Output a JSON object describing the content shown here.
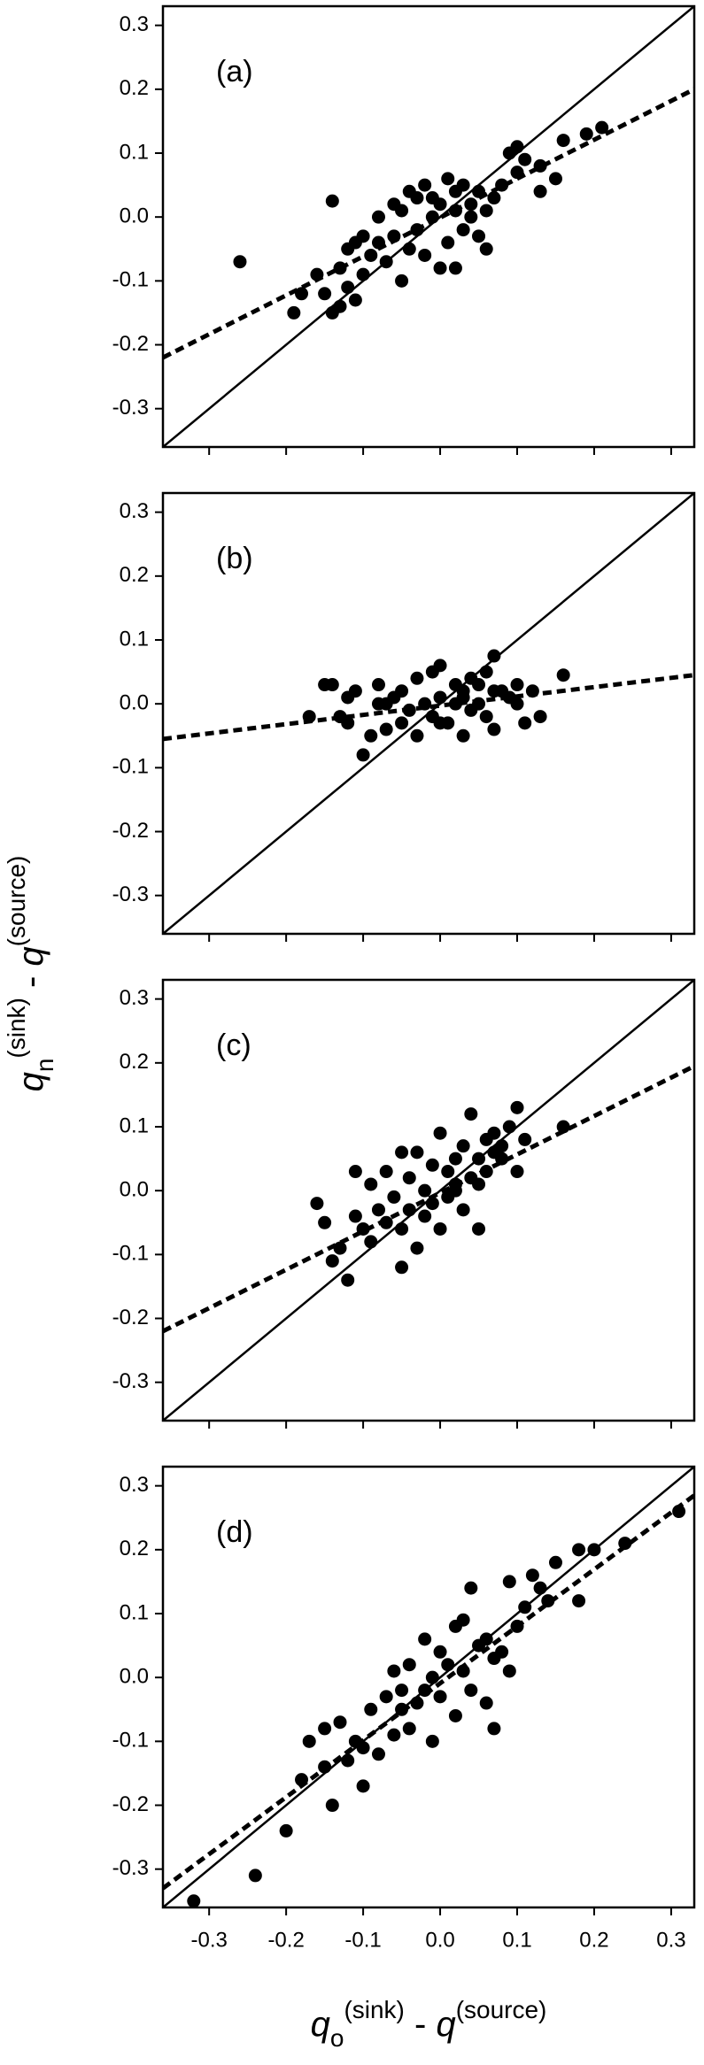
{
  "chart_data": [
    {
      "type": "scatter",
      "label": "(a)",
      "xlim": [
        -0.36,
        0.33
      ],
      "ylim": [
        -0.36,
        0.33
      ],
      "xticks": [
        -0.3,
        -0.2,
        -0.1,
        {
          "value": 0,
          "label": "0.0"
        },
        0.1,
        0.2,
        0.3
      ],
      "yticks": [
        -0.3,
        -0.2,
        -0.1,
        {
          "value": 0,
          "label": "0.0"
        },
        0.1,
        0.2,
        0.3
      ],
      "show_xtick_labels": false,
      "series": [
        {
          "style": "marker",
          "color": "#000000",
          "x": [
            -0.26,
            -0.19,
            -0.18,
            -0.16,
            -0.15,
            -0.14,
            -0.14,
            -0.13,
            -0.12,
            -0.12,
            -0.11,
            -0.11,
            -0.1,
            -0.1,
            -0.09,
            -0.08,
            -0.08,
            -0.07,
            -0.06,
            -0.06,
            -0.05,
            -0.05,
            -0.04,
            -0.04,
            -0.03,
            -0.03,
            -0.02,
            -0.02,
            -0.01,
            -0.01,
            0.0,
            0.0,
            0.01,
            0.01,
            0.02,
            0.02,
            0.03,
            0.03,
            0.04,
            0.04,
            0.05,
            0.05,
            0.06,
            0.07,
            0.08,
            0.09,
            0.1,
            0.1,
            0.11,
            0.13,
            0.13,
            0.15,
            0.16,
            0.19,
            0.21,
            -0.13,
            0.02,
            0.06
          ],
          "values": [
            -0.07,
            -0.15,
            -0.12,
            -0.09,
            -0.12,
            -0.15,
            0.025,
            -0.08,
            -0.05,
            -0.11,
            -0.04,
            -0.13,
            -0.09,
            -0.03,
            -0.06,
            -0.04,
            0.0,
            -0.07,
            -0.03,
            0.02,
            -0.1,
            0.01,
            -0.05,
            0.04,
            -0.02,
            0.03,
            -0.06,
            0.05,
            0.0,
            0.03,
            -0.08,
            0.02,
            -0.04,
            0.06,
            0.01,
            0.04,
            -0.02,
            0.05,
            0.0,
            0.02,
            -0.03,
            0.04,
            0.01,
            0.03,
            0.05,
            0.1,
            0.07,
            0.11,
            0.09,
            0.04,
            0.08,
            0.06,
            0.12,
            0.13,
            0.14,
            -0.14,
            -0.08,
            -0.05
          ]
        },
        {
          "style": "solid",
          "color": "#000000",
          "x": [
            -0.36,
            0.33
          ],
          "values": [
            -0.36,
            0.33
          ]
        },
        {
          "style": "dashed",
          "color": "#000000",
          "x": [
            -0.36,
            0.33
          ],
          "values": [
            -0.22,
            0.2
          ]
        }
      ]
    },
    {
      "type": "scatter",
      "label": "(b)",
      "xlim": [
        -0.36,
        0.33
      ],
      "ylim": [
        -0.36,
        0.33
      ],
      "xticks": [
        -0.3,
        -0.2,
        -0.1,
        {
          "value": 0,
          "label": "0.0"
        },
        0.1,
        0.2,
        0.3
      ],
      "yticks": [
        -0.3,
        -0.2,
        -0.1,
        {
          "value": 0,
          "label": "0.0"
        },
        0.1,
        0.2,
        0.3
      ],
      "show_xtick_labels": false,
      "series": [
        {
          "style": "marker",
          "color": "#000000",
          "x": [
            -0.17,
            -0.15,
            -0.14,
            -0.13,
            -0.12,
            -0.12,
            -0.11,
            -0.1,
            -0.09,
            -0.08,
            -0.08,
            -0.07,
            -0.06,
            -0.05,
            -0.05,
            -0.04,
            -0.03,
            -0.03,
            -0.02,
            -0.01,
            -0.01,
            0.0,
            0.0,
            0.01,
            0.02,
            0.02,
            0.03,
            0.03,
            0.04,
            0.04,
            0.05,
            0.05,
            0.06,
            0.06,
            0.07,
            0.07,
            0.08,
            0.09,
            0.1,
            0.11,
            0.12,
            0.13,
            0.16,
            0.03,
            -0.07,
            0.0,
            0.07,
            0.1
          ],
          "values": [
            -0.02,
            0.03,
            0.03,
            -0.02,
            0.01,
            -0.03,
            0.02,
            -0.08,
            -0.05,
            0.0,
            0.03,
            -0.04,
            0.01,
            -0.03,
            0.02,
            -0.01,
            0.04,
            -0.05,
            0.0,
            0.05,
            -0.02,
            0.06,
            0.01,
            -0.03,
            0.03,
            0.0,
            -0.05,
            0.02,
            0.04,
            -0.01,
            0.03,
            0.0,
            -0.02,
            0.05,
            0.075,
            -0.04,
            0.02,
            0.01,
            0.0,
            -0.03,
            0.02,
            -0.02,
            0.045,
            0.01,
            0.0,
            -0.03,
            0.02,
            0.03
          ]
        },
        {
          "style": "solid",
          "color": "#000000",
          "x": [
            -0.36,
            0.33
          ],
          "values": [
            -0.36,
            0.33
          ]
        },
        {
          "style": "dashed",
          "color": "#000000",
          "x": [
            -0.36,
            0.33
          ],
          "values": [
            -0.055,
            0.045
          ]
        }
      ]
    },
    {
      "type": "scatter",
      "label": "(c)",
      "xlim": [
        -0.36,
        0.33
      ],
      "ylim": [
        -0.36,
        0.33
      ],
      "xticks": [
        -0.3,
        -0.2,
        -0.1,
        {
          "value": 0,
          "label": "0.0"
        },
        0.1,
        0.2,
        0.3
      ],
      "yticks": [
        -0.3,
        -0.2,
        -0.1,
        {
          "value": 0,
          "label": "0.0"
        },
        0.1,
        0.2,
        0.3
      ],
      "show_xtick_labels": false,
      "series": [
        {
          "style": "marker",
          "color": "#000000",
          "x": [
            -0.16,
            -0.15,
            -0.14,
            -0.13,
            -0.12,
            -0.11,
            -0.11,
            -0.1,
            -0.09,
            -0.09,
            -0.08,
            -0.07,
            -0.07,
            -0.06,
            -0.05,
            -0.05,
            -0.04,
            -0.04,
            -0.03,
            -0.03,
            -0.02,
            -0.02,
            -0.01,
            -0.01,
            0.0,
            0.0,
            0.01,
            0.01,
            0.02,
            0.02,
            0.03,
            0.03,
            0.04,
            0.04,
            0.05,
            0.05,
            0.06,
            0.06,
            0.07,
            0.07,
            0.08,
            0.08,
            0.09,
            0.1,
            0.1,
            0.11,
            0.16,
            -0.05,
            0.02,
            0.05
          ],
          "values": [
            -0.02,
            -0.05,
            -0.11,
            -0.09,
            -0.14,
            0.03,
            -0.04,
            -0.06,
            -0.08,
            0.01,
            -0.03,
            -0.05,
            0.03,
            -0.01,
            -0.12,
            -0.06,
            0.02,
            -0.03,
            -0.09,
            0.06,
            -0.04,
            0.0,
            -0.02,
            0.04,
            -0.06,
            0.09,
            -0.01,
            0.03,
            0.01,
            0.05,
            -0.03,
            0.07,
            0.02,
            0.12,
            -0.06,
            0.05,
            0.08,
            0.03,
            0.06,
            0.09,
            0.05,
            0.07,
            0.1,
            0.03,
            0.13,
            0.08,
            0.1,
            0.06,
            0.0,
            0.01
          ]
        },
        {
          "style": "solid",
          "color": "#000000",
          "x": [
            -0.36,
            0.33
          ],
          "values": [
            -0.36,
            0.33
          ]
        },
        {
          "style": "dashed",
          "color": "#000000",
          "x": [
            -0.36,
            0.33
          ],
          "values": [
            -0.22,
            0.195
          ]
        }
      ]
    },
    {
      "type": "scatter",
      "label": "(d)",
      "xlim": [
        -0.36,
        0.33
      ],
      "ylim": [
        -0.36,
        0.33
      ],
      "xticks": [
        -0.3,
        -0.2,
        -0.1,
        {
          "value": 0,
          "label": "0.0"
        },
        0.1,
        0.2,
        0.3
      ],
      "yticks": [
        -0.3,
        -0.2,
        -0.1,
        {
          "value": 0,
          "label": "0.0"
        },
        0.1,
        0.2,
        0.3
      ],
      "show_xtick_labels": true,
      "series": [
        {
          "style": "marker",
          "color": "#000000",
          "x": [
            -0.32,
            -0.24,
            -0.2,
            -0.18,
            -0.17,
            -0.15,
            -0.14,
            -0.13,
            -0.12,
            -0.11,
            -0.1,
            -0.1,
            -0.09,
            -0.08,
            -0.07,
            -0.06,
            -0.06,
            -0.05,
            -0.04,
            -0.04,
            -0.03,
            -0.02,
            -0.02,
            -0.01,
            -0.01,
            0.0,
            0.0,
            0.01,
            0.02,
            0.02,
            0.03,
            0.03,
            0.04,
            0.04,
            0.05,
            0.06,
            0.06,
            0.07,
            0.08,
            0.09,
            0.09,
            0.1,
            0.11,
            0.12,
            0.13,
            0.14,
            0.15,
            0.18,
            0.18,
            0.2,
            0.24,
            0.31,
            -0.05,
            0.07,
            -0.15
          ],
          "values": [
            -0.35,
            -0.31,
            -0.24,
            -0.16,
            -0.1,
            -0.08,
            -0.2,
            -0.07,
            -0.13,
            -0.1,
            -0.17,
            -0.11,
            -0.05,
            -0.12,
            -0.03,
            -0.09,
            0.01,
            -0.05,
            0.02,
            -0.08,
            -0.04,
            0.06,
            -0.02,
            0.0,
            -0.1,
            0.04,
            -0.03,
            0.02,
            0.08,
            -0.06,
            0.01,
            0.09,
            -0.02,
            0.14,
            0.05,
            -0.04,
            0.06,
            -0.08,
            0.04,
            0.15,
            0.01,
            0.08,
            0.11,
            0.16,
            0.14,
            0.12,
            0.18,
            0.2,
            0.12,
            0.2,
            0.21,
            0.26,
            -0.02,
            0.03,
            -0.14
          ]
        },
        {
          "style": "solid",
          "color": "#000000",
          "x": [
            -0.36,
            0.33
          ],
          "values": [
            -0.36,
            0.33
          ]
        },
        {
          "style": "dashed",
          "color": "#000000",
          "x": [
            -0.36,
            0.33
          ],
          "values": [
            -0.33,
            0.285
          ]
        }
      ]
    }
  ],
  "xlabel": {
    "var": "q",
    "sub": "o",
    "sup": "(sink)",
    "sep": " - ",
    "var2": "q",
    "sup2": "(source)"
  },
  "ylabel": {
    "var": "q",
    "sub": "n",
    "sup": "(sink)",
    "sep": " - ",
    "var2": "q",
    "sup2": "(source)"
  }
}
